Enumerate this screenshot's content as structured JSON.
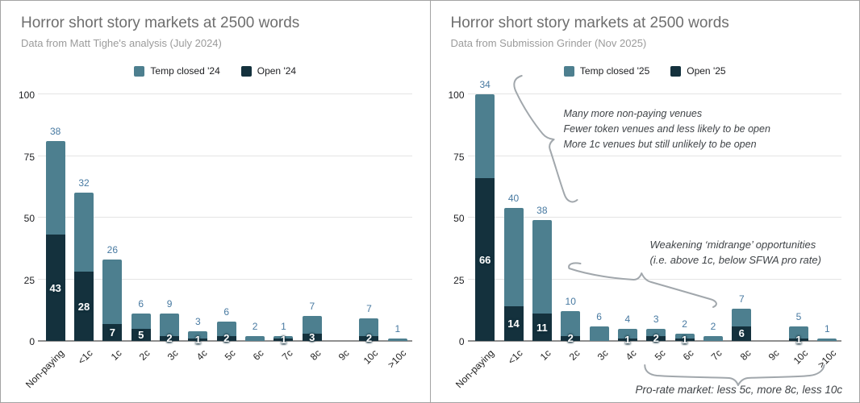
{
  "colors": {
    "temp_closed": "#4d7f8f",
    "open": "#14313d",
    "value_label": "#4779a1",
    "annotation_text": "#3f4347",
    "annotation_line": "#a1a7ac",
    "gridline": "#e4e4e4",
    "axis": "#8f8f8f"
  },
  "chart_data": [
    {
      "type": "bar",
      "stacked": true,
      "title": "Horror short story markets at 2500 words",
      "subtitle": "Data from Matt Tighe's analysis (July 2024)",
      "categories": [
        "Non-paying",
        "<1c",
        "1c",
        "2c",
        "3c",
        "4c",
        "5c",
        "6c",
        "7c",
        "8c",
        "9c",
        "10c",
        ">10c"
      ],
      "series": [
        {
          "name": "Temp closed '24",
          "color": "#4d7f8f",
          "values": [
            38,
            32,
            26,
            6,
            9,
            3,
            6,
            2,
            1,
            7,
            0,
            7,
            1
          ]
        },
        {
          "name": "Open '24",
          "color": "#14313d",
          "values": [
            43,
            28,
            7,
            5,
            2,
            1,
            2,
            0,
            1,
            3,
            0,
            2,
            0
          ]
        }
      ],
      "xlabel": "",
      "ylabel": "",
      "ylim": [
        0,
        100
      ],
      "yticks": [
        0,
        25,
        50,
        75,
        100
      ],
      "grid": true,
      "legend_position": "top"
    },
    {
      "type": "bar",
      "stacked": true,
      "title": "Horror short story markets at 2500 words",
      "subtitle": "Data from Submission Grinder (Nov 2025)",
      "categories": [
        "Non-paying",
        "<1c",
        "1c",
        "2c",
        "3c",
        "4c",
        "5c",
        "6c",
        "7c",
        "8c",
        "9c",
        "10c",
        ">10c"
      ],
      "series": [
        {
          "name": "Temp closed '25",
          "color": "#4d7f8f",
          "values": [
            34,
            40,
            38,
            10,
            6,
            4,
            3,
            2,
            2,
            7,
            0,
            5,
            1
          ]
        },
        {
          "name": "Open '25",
          "color": "#14313d",
          "values": [
            66,
            14,
            11,
            2,
            0,
            1,
            2,
            1,
            0,
            6,
            0,
            1,
            0
          ]
        }
      ],
      "xlabel": "",
      "ylabel": "",
      "ylim": [
        0,
        100
      ],
      "yticks": [
        0,
        25,
        50,
        75,
        100
      ],
      "grid": true,
      "legend_position": "top",
      "annotations": {
        "top": {
          "lines": [
            "Many more non-paying venues",
            "Fewer token venues and less likely to be open",
            "More 1c venues but still unlikely to be open"
          ]
        },
        "mid": {
          "lines": [
            "Weakening ‘midrange’ opportunities",
            "(i.e. above 1c, below SFWA pro rate)"
          ]
        },
        "bottom": {
          "text": "Pro-rate market: less 5c, more 8c, less 10c"
        }
      }
    }
  ]
}
